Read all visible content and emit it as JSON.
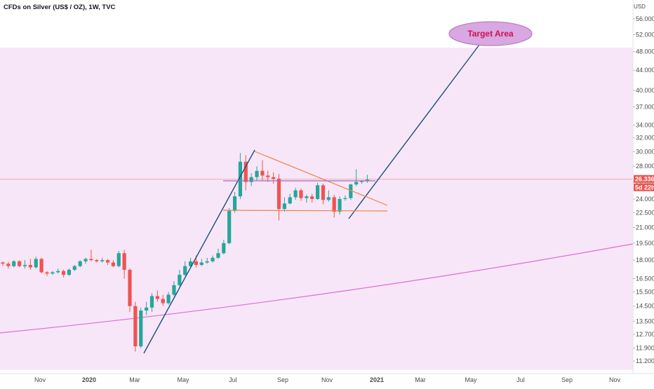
{
  "chart_data": {
    "type": "candlestick",
    "title": "CFDs on Silver (US$ / OZ), 1W, TVC",
    "y_scale": "log",
    "ylim": [
      10.8,
      60.0
    ],
    "y_unit": "USD",
    "y_ticks": [
      "56.000",
      "52.000",
      "48.000",
      "44.000",
      "40.000",
      "37.000",
      "34.000",
      "32.000",
      "30.000",
      "28.000",
      "26.000",
      "24.000",
      "22.500",
      "21.000",
      "19.500",
      "18.000",
      "16.500",
      "15.500",
      "14.500",
      "13.500",
      "12.700",
      "11.900",
      "11.200"
    ],
    "x_ticks": [
      "Nov",
      "2020",
      "Mar",
      "May",
      "Jul",
      "Sep",
      "Nov",
      "2021",
      "Mar",
      "May",
      "Jul",
      "Sep",
      "Nov"
    ],
    "last_price": {
      "label": "26.336",
      "value": 26.336
    },
    "countdown": {
      "label": "5d 22h",
      "value": 25.0
    },
    "colors": {
      "up": "#26a69a",
      "down": "#ef5350",
      "zone": "#f7e6f7",
      "trend": "#1a4f7a",
      "pattern": "#f0824a",
      "support": "#a56bb5",
      "curve": "#e06ad6",
      "target_fill": "#d9a7e2"
    },
    "candles": [
      [
        17.8,
        17.7,
        17.9,
        17.5
      ],
      [
        17.7,
        17.5,
        17.85,
        17.3
      ],
      [
        17.5,
        17.9,
        18.0,
        17.4
      ],
      [
        17.9,
        17.5,
        18.0,
        17.4
      ],
      [
        17.5,
        17.6,
        18.0,
        17.3
      ],
      [
        17.6,
        17.4,
        18.1,
        17.2
      ],
      [
        17.4,
        18.1,
        18.3,
        17.3
      ],
      [
        18.1,
        17.0,
        18.2,
        16.9
      ],
      [
        17.0,
        16.9,
        17.1,
        16.7
      ],
      [
        16.9,
        17.0,
        17.1,
        16.8
      ],
      [
        17.0,
        17.1,
        17.3,
        16.9
      ],
      [
        17.1,
        16.8,
        17.2,
        16.6
      ],
      [
        16.8,
        17.2,
        17.3,
        16.7
      ],
      [
        17.2,
        17.5,
        17.6,
        17.1
      ],
      [
        17.5,
        17.9,
        18.0,
        17.4
      ],
      [
        17.9,
        18.1,
        18.2,
        17.7
      ],
      [
        18.1,
        18.0,
        18.9,
        17.9
      ],
      [
        18.0,
        17.9,
        18.1,
        17.8
      ],
      [
        17.9,
        18.0,
        18.2,
        17.8
      ],
      [
        18.0,
        17.8,
        18.1,
        17.6
      ],
      [
        17.8,
        17.5,
        18.0,
        17.4
      ],
      [
        17.5,
        18.6,
        18.8,
        17.4
      ],
      [
        18.6,
        17.2,
        18.9,
        16.5
      ],
      [
        17.2,
        14.5,
        17.3,
        14.1
      ],
      [
        14.5,
        12.0,
        14.8,
        11.7
      ],
      [
        12.0,
        14.2,
        14.4,
        11.9
      ],
      [
        14.2,
        14.4,
        14.8,
        13.9
      ],
      [
        14.4,
        15.2,
        15.4,
        14.1
      ],
      [
        15.2,
        15.0,
        15.6,
        14.8
      ],
      [
        15.0,
        14.7,
        15.3,
        14.5
      ],
      [
        14.7,
        15.3,
        15.5,
        14.6
      ],
      [
        15.3,
        16.0,
        16.3,
        15.2
      ],
      [
        16.0,
        16.8,
        17.2,
        15.9
      ],
      [
        16.8,
        17.5,
        17.9,
        16.7
      ],
      [
        17.5,
        17.9,
        18.2,
        17.3
      ],
      [
        17.9,
        17.6,
        18.4,
        17.4
      ],
      [
        17.6,
        17.8,
        18.1,
        17.5
      ],
      [
        17.8,
        17.9,
        18.2,
        17.7
      ],
      [
        17.9,
        18.2,
        18.4,
        17.8
      ],
      [
        18.2,
        18.6,
        19.0,
        18.1
      ],
      [
        18.6,
        19.5,
        19.8,
        18.5
      ],
      [
        19.5,
        22.7,
        23.0,
        19.4
      ],
      [
        22.7,
        24.3,
        24.8,
        22.5
      ],
      [
        24.3,
        28.6,
        29.8,
        24.0
      ],
      [
        28.6,
        26.0,
        29.5,
        25.0
      ],
      [
        26.0,
        26.6,
        27.1,
        25.5
      ],
      [
        26.6,
        27.4,
        28.0,
        26.2
      ],
      [
        27.4,
        26.8,
        28.8,
        26.2
      ],
      [
        26.8,
        26.6,
        27.4,
        26.0
      ],
      [
        26.6,
        26.4,
        27.2,
        25.8
      ],
      [
        26.4,
        22.9,
        27.0,
        21.7
      ],
      [
        22.9,
        23.5,
        24.2,
        22.6
      ],
      [
        23.5,
        24.2,
        24.6,
        23.4
      ],
      [
        24.2,
        25.0,
        25.3,
        23.9
      ],
      [
        25.0,
        24.1,
        25.2,
        23.8
      ],
      [
        24.1,
        24.3,
        24.5,
        23.6
      ],
      [
        24.3,
        24.0,
        24.6,
        23.6
      ],
      [
        24.0,
        25.6,
        25.9,
        23.9
      ],
      [
        25.6,
        23.9,
        25.8,
        23.4
      ],
      [
        23.9,
        24.2,
        25.0,
        23.7
      ],
      [
        24.2,
        22.6,
        24.5,
        22.0
      ],
      [
        22.6,
        24.0,
        24.3,
        22.3
      ],
      [
        24.0,
        24.1,
        24.4,
        23.8
      ],
      [
        24.1,
        25.7,
        25.8,
        23.9
      ],
      [
        25.7,
        26.0,
        27.6,
        25.5
      ],
      [
        26.0,
        26.1,
        26.2,
        25.8
      ],
      [
        26.1,
        26.3,
        26.9,
        25.9
      ]
    ],
    "drawings": {
      "target_label": "Target Area",
      "pattern_type": "descending triangle + channel projection"
    },
    "grid": false,
    "legend": "none"
  }
}
